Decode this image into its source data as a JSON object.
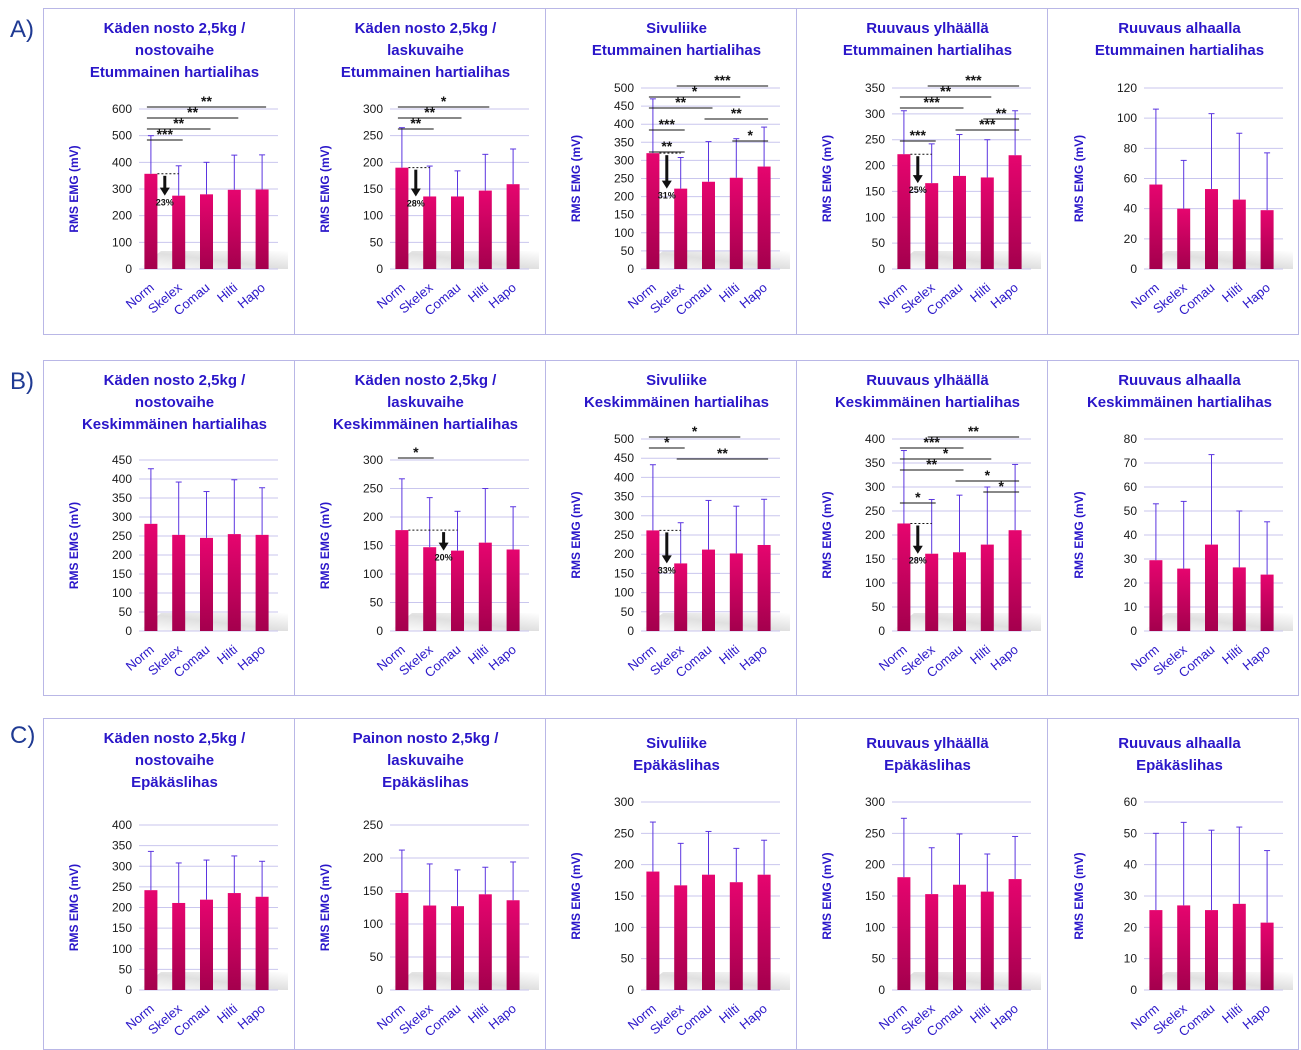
{
  "rows": [
    {
      "label": "A)"
    },
    {
      "label": "B)"
    },
    {
      "label": "C)"
    }
  ],
  "colors": {
    "bar_top": "#e6056f",
    "bar_bottom": "#a4004d",
    "error": "#5b35e0",
    "grid": "#c9c6ee",
    "title": "#2a16c9",
    "sig": "#111111"
  },
  "chart_data": [
    {
      "type": "bar",
      "row": 0,
      "col": 0,
      "title_lines": [
        "Käden nosto 2,5kg /",
        "nostovaihe",
        "Etummainen hartialihas"
      ],
      "ylabel": "RMS EMG (mV)",
      "categories": [
        "Norm",
        "Skelex",
        "Comau",
        "Hilti",
        "Hapo"
      ],
      "values": [
        357,
        275,
        280,
        297,
        298
      ],
      "errors": [
        500,
        387,
        400,
        427,
        428
      ],
      "ylim": [
        0,
        600
      ],
      "yticks": [
        0,
        100,
        200,
        300,
        400,
        500,
        600
      ],
      "sig": [
        {
          "a": 0,
          "b": 4,
          "label": "**"
        },
        {
          "a": 0,
          "b": 3,
          "label": "**"
        },
        {
          "a": 0,
          "b": 2,
          "label": "**"
        },
        {
          "a": 0,
          "b": 1,
          "label": "***"
        }
      ],
      "reduction": {
        "from": 0,
        "to": 1,
        "label": "23%"
      }
    },
    {
      "type": "bar",
      "row": 0,
      "col": 1,
      "title_lines": [
        "Käden nosto 2,5kg /",
        "laskuvaihe",
        "Etummainen hartialihas"
      ],
      "ylabel": "RMS EMG (mV)",
      "categories": [
        "Norm",
        "Skelex",
        "Comau",
        "Hilti",
        "Hapo"
      ],
      "values": [
        190,
        136,
        136,
        147,
        159
      ],
      "errors": [
        265,
        193,
        184,
        215,
        225
      ],
      "ylim": [
        0,
        300
      ],
      "yticks": [
        0,
        50,
        100,
        150,
        200,
        250,
        300
      ],
      "sig": [
        {
          "a": 0,
          "b": 3,
          "label": "*"
        },
        {
          "a": 0,
          "b": 2,
          "label": "**"
        },
        {
          "a": 0,
          "b": 1,
          "label": "**"
        }
      ],
      "reduction": {
        "from": 0,
        "to": 1,
        "label": "28%"
      }
    },
    {
      "type": "bar",
      "row": 0,
      "col": 2,
      "title_lines": [
        "Sivuliike",
        "Etummainen hartialihas"
      ],
      "ylabel": "RMS EMG (mV)",
      "categories": [
        "Norm",
        "Skelex",
        "Comau",
        "Hilti",
        "Hapo"
      ],
      "values": [
        320,
        222,
        241,
        252,
        283
      ],
      "errors": [
        470,
        308,
        352,
        360,
        392
      ],
      "ylim": [
        0,
        500
      ],
      "yticks": [
        0,
        50,
        100,
        150,
        200,
        250,
        300,
        350,
        400,
        450,
        500
      ],
      "sig": [
        {
          "a": 1,
          "b": 4,
          "label": "***"
        },
        {
          "a": 0,
          "b": 3,
          "label": "*"
        },
        {
          "a": 0,
          "b": 2,
          "label": "**"
        },
        {
          "a": 2,
          "b": 4,
          "label": "**"
        },
        {
          "a": 0,
          "b": 1,
          "label": "***"
        },
        {
          "a": 3,
          "b": 4,
          "label": "*"
        },
        {
          "a": 0,
          "b": 1,
          "label": "**"
        }
      ],
      "reduction": {
        "from": 0,
        "to": 1,
        "label": "31%"
      }
    },
    {
      "type": "bar",
      "row": 0,
      "col": 3,
      "title_lines": [
        "Ruuvaus ylhäällä",
        "Etummainen hartialihas"
      ],
      "ylabel": "RMS EMG (mV)",
      "categories": [
        "Norm",
        "Skelex",
        "Comau",
        "Hilti",
        "Hapo"
      ],
      "values": [
        222,
        166,
        180,
        177,
        220
      ],
      "errors": [
        306,
        242,
        260,
        250,
        306
      ],
      "ylim": [
        0,
        350
      ],
      "yticks": [
        0,
        50,
        100,
        150,
        200,
        250,
        300,
        350
      ],
      "sig": [
        {
          "a": 1,
          "b": 4,
          "label": "***"
        },
        {
          "a": 0,
          "b": 3,
          "label": "**"
        },
        {
          "a": 0,
          "b": 2,
          "label": "***"
        },
        {
          "a": 3,
          "b": 4,
          "label": "**"
        },
        {
          "a": 2,
          "b": 4,
          "label": "***"
        },
        {
          "a": 0,
          "b": 1,
          "label": "***"
        }
      ],
      "reduction": {
        "from": 0,
        "to": 1,
        "label": "25%"
      }
    },
    {
      "type": "bar",
      "row": 0,
      "col": 4,
      "title_lines": [
        "Ruuvaus alhaalla",
        "Etummainen hartialihas"
      ],
      "ylabel": "RMS EMG (mV)",
      "categories": [
        "Norm",
        "Skelex",
        "Comau",
        "Hilti",
        "Hapo"
      ],
      "values": [
        56,
        40,
        53,
        46,
        39
      ],
      "errors": [
        106,
        72,
        103,
        90,
        77
      ],
      "ylim": [
        0,
        120
      ],
      "yticks": [
        0,
        20,
        40,
        60,
        80,
        100,
        120
      ],
      "sig": []
    },
    {
      "type": "bar",
      "row": 1,
      "col": 0,
      "title_lines": [
        "Käden nosto 2,5kg /",
        "nostovaihe",
        "Keskimmäinen hartialihas"
      ],
      "ylabel": "RMS EMG (mV)",
      "categories": [
        "Norm",
        "Skelex",
        "Comau",
        "Hilti",
        "Hapo"
      ],
      "values": [
        282,
        253,
        245,
        255,
        253
      ],
      "errors": [
        427,
        392,
        367,
        398,
        377
      ],
      "ylim": [
        0,
        450
      ],
      "yticks": [
        0,
        50,
        100,
        150,
        200,
        250,
        300,
        350,
        400,
        450
      ],
      "sig": []
    },
    {
      "type": "bar",
      "row": 1,
      "col": 1,
      "title_lines": [
        "Käden nosto 2,5kg /",
        "laskuvaihe",
        "Keskimmäinen hartialihas"
      ],
      "ylabel": "RMS EMG (mV)",
      "categories": [
        "Norm",
        "Skelex",
        "Comau",
        "Hilti",
        "Hapo"
      ],
      "values": [
        177,
        147,
        141,
        155,
        143
      ],
      "errors": [
        267,
        234,
        210,
        250,
        218
      ],
      "ylim": [
        0,
        300
      ],
      "yticks": [
        0,
        50,
        100,
        150,
        200,
        250,
        300
      ],
      "sig": [
        {
          "a": 0,
          "b": 1,
          "label": "*"
        }
      ],
      "reduction": {
        "from": 0,
        "to": 2,
        "label": "20%"
      }
    },
    {
      "type": "bar",
      "row": 1,
      "col": 2,
      "title_lines": [
        "Sivuliike",
        "Keskimmäinen hartialihas"
      ],
      "ylabel": "RMS EMG (mV)",
      "categories": [
        "Norm",
        "Skelex",
        "Comau",
        "Hilti",
        "Hapo"
      ],
      "values": [
        262,
        176,
        212,
        202,
        224
      ],
      "errors": [
        433,
        282,
        340,
        325,
        343
      ],
      "ylim": [
        0,
        500
      ],
      "yticks": [
        0,
        50,
        100,
        150,
        200,
        250,
        300,
        350,
        400,
        450,
        500
      ],
      "sig": [
        {
          "a": 0,
          "b": 3,
          "label": "*"
        },
        {
          "a": 0,
          "b": 1,
          "label": "*"
        },
        {
          "a": 1,
          "b": 4,
          "label": "**"
        }
      ],
      "reduction": {
        "from": 0,
        "to": 1,
        "label": "33%"
      }
    },
    {
      "type": "bar",
      "row": 1,
      "col": 3,
      "title_lines": [
        "Ruuvaus ylhäällä",
        "Keskimmäinen hartialihas"
      ],
      "ylabel": "RMS EMG (mV)",
      "categories": [
        "Norm",
        "Skelex",
        "Comau",
        "Hilti",
        "Hapo"
      ],
      "values": [
        224,
        161,
        164,
        180,
        210
      ],
      "errors": [
        376,
        274,
        283,
        300,
        347
      ],
      "ylim": [
        0,
        400
      ],
      "yticks": [
        0,
        50,
        100,
        150,
        200,
        250,
        300,
        350,
        400
      ],
      "sig": [
        {
          "a": 1,
          "b": 4,
          "label": "**"
        },
        {
          "a": 0,
          "b": 2,
          "label": "***"
        },
        {
          "a": 0,
          "b": 3,
          "label": "*"
        },
        {
          "a": 0,
          "b": 2,
          "label": "**"
        },
        {
          "a": 2,
          "b": 4,
          "label": "*"
        },
        {
          "a": 3,
          "b": 4,
          "label": "*"
        },
        {
          "a": 0,
          "b": 1,
          "label": "*"
        }
      ],
      "reduction": {
        "from": 0,
        "to": 1,
        "label": "28%"
      }
    },
    {
      "type": "bar",
      "row": 1,
      "col": 4,
      "title_lines": [
        "Ruuvaus alhaalla",
        "Keskimmäinen hartialihas"
      ],
      "ylabel": "RMS EMG (mV)",
      "categories": [
        "Norm",
        "Skelex",
        "Comau",
        "Hilti",
        "Hapo"
      ],
      "values": [
        29.5,
        26,
        36,
        26.5,
        23.5
      ],
      "errors": [
        53,
        54,
        73.5,
        50,
        45.5
      ],
      "ylim": [
        0,
        80
      ],
      "yticks": [
        0,
        10,
        20,
        30,
        40,
        50,
        60,
        70,
        80
      ],
      "sig": []
    },
    {
      "type": "bar",
      "row": 2,
      "col": 0,
      "title_lines": [
        "Käden nosto 2,5kg /",
        "nostovaihe",
        "Epäkäslihas"
      ],
      "ylabel": "RMS EMG (mV)",
      "categories": [
        "Norm",
        "Skelex",
        "Comau",
        "Hilti",
        "Hapo"
      ],
      "values": [
        242,
        211,
        219,
        235,
        226
      ],
      "errors": [
        336,
        308,
        315,
        325,
        312
      ],
      "ylim": [
        0,
        400
      ],
      "yticks": [
        0,
        50,
        100,
        150,
        200,
        250,
        300,
        350,
        400
      ],
      "sig": []
    },
    {
      "type": "bar",
      "row": 2,
      "col": 1,
      "title_lines": [
        "Painon nosto 2,5kg /",
        "laskuvaihe",
        "Epäkäslihas"
      ],
      "ylabel": "RMS EMG (mV)",
      "categories": [
        "Norm",
        "Skelex",
        "Comau",
        "Hilti",
        "Hapo"
      ],
      "values": [
        147,
        128,
        127,
        145,
        136
      ],
      "errors": [
        212,
        191,
        182,
        186,
        194
      ],
      "ylim": [
        0,
        250
      ],
      "yticks": [
        0,
        50,
        100,
        150,
        200,
        250
      ],
      "sig": []
    },
    {
      "type": "bar",
      "row": 2,
      "col": 2,
      "title_lines": [
        "Sivuliike",
        "Epäkäslihas"
      ],
      "ylabel": "RMS EMG (mV)",
      "categories": [
        "Norm",
        "Skelex",
        "Comau",
        "Hilti",
        "Hapo"
      ],
      "values": [
        189,
        167,
        184,
        172,
        184
      ],
      "errors": [
        268,
        234,
        253,
        226,
        239
      ],
      "ylim": [
        0,
        300
      ],
      "yticks": [
        0,
        50,
        100,
        150,
        200,
        250,
        300
      ],
      "sig": []
    },
    {
      "type": "bar",
      "row": 2,
      "col": 3,
      "title_lines": [
        "Ruuvaus ylhäällä",
        "Epäkäslihas"
      ],
      "ylabel": "RMS EMG (mV)",
      "categories": [
        "Norm",
        "Skelex",
        "Comau",
        "Hilti",
        "Hapo"
      ],
      "values": [
        180,
        153,
        168,
        157,
        177
      ],
      "errors": [
        274,
        227,
        249,
        217,
        245
      ],
      "ylim": [
        0,
        300
      ],
      "yticks": [
        0,
        50,
        100,
        150,
        200,
        250,
        300
      ],
      "sig": []
    },
    {
      "type": "bar",
      "row": 2,
      "col": 4,
      "title_lines": [
        "Ruuvaus alhaalla",
        "Epäkäslihas"
      ],
      "ylabel": "RMS EMG (mV)",
      "categories": [
        "Norm",
        "Skelex",
        "Comau",
        "Hilti",
        "Hapo"
      ],
      "values": [
        25.5,
        27,
        25.5,
        27.5,
        21.5
      ],
      "errors": [
        50,
        53.5,
        51,
        52,
        44.5
      ],
      "ylim": [
        0,
        60
      ],
      "yticks": [
        0,
        10,
        20,
        30,
        40,
        50,
        60
      ],
      "sig": []
    }
  ]
}
